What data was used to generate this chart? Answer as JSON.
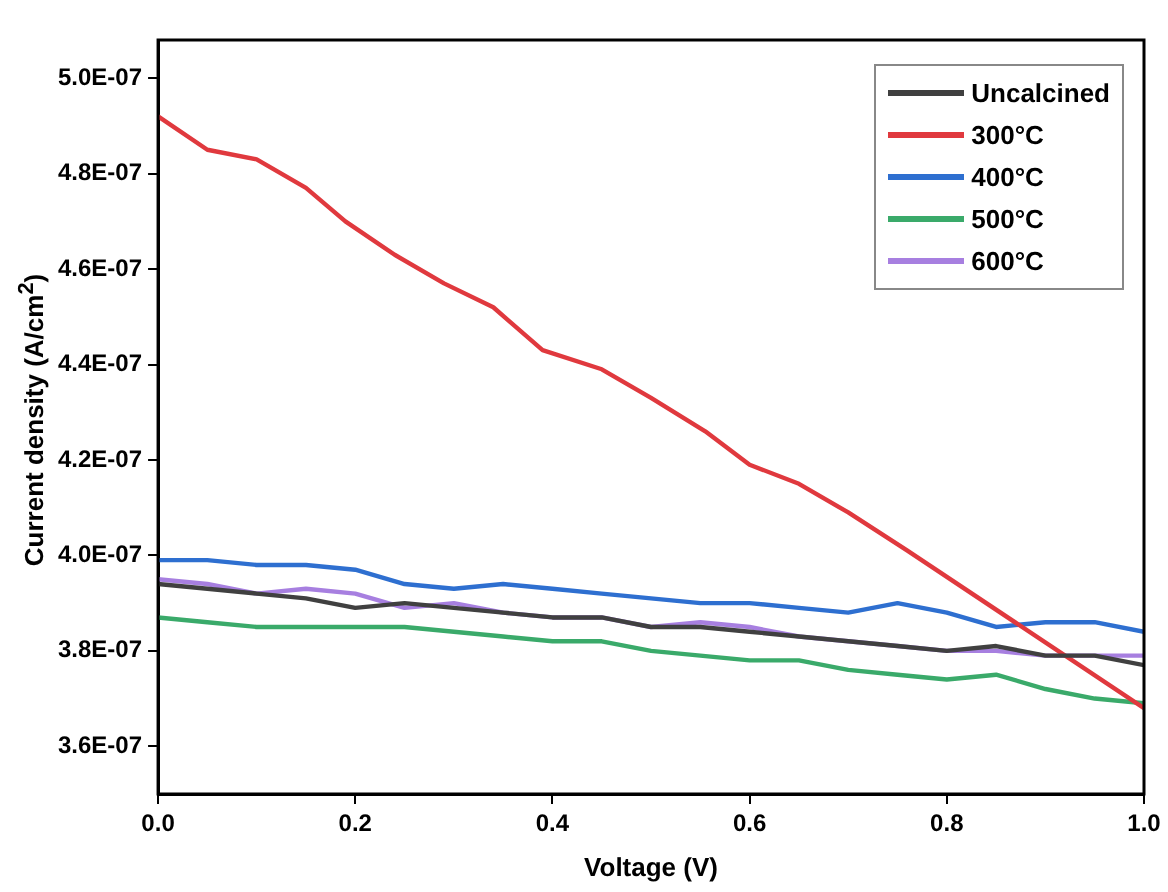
{
  "chart_data": {
    "type": "line",
    "xlabel": "Voltage (V)",
    "ylabel": "Current density (A/cm$^{2}$)",
    "x": [
      0,
      0.05,
      0.1,
      0.15,
      0.2,
      0.25,
      0.3,
      0.35,
      0.4,
      0.45,
      0.5,
      0.55,
      0.6,
      0.65,
      0.7,
      0.75,
      0.8,
      0.85,
      0.9,
      0.95,
      1.0
    ],
    "series": [
      {
        "name": "Uncalcined",
        "color": "#404040",
        "values": [
          3.94e-07,
          3.93e-07,
          3.92e-07,
          3.91e-07,
          3.89e-07,
          3.9e-07,
          3.89e-07,
          3.88e-07,
          3.87e-07,
          3.87e-07,
          3.85e-07,
          3.85e-07,
          3.84e-07,
          3.83e-07,
          3.82e-07,
          3.81e-07,
          3.8e-07,
          3.81e-07,
          3.79e-07,
          3.79e-07,
          3.77e-07
        ]
      },
      {
        "name": "300°C",
        "color": "#e0393e",
        "x": [
          0,
          0.05,
          0.1,
          0.15,
          0.19,
          0.24,
          0.29,
          0.34,
          0.39,
          0.45,
          0.5,
          0.555,
          0.6,
          0.65,
          0.7,
          0.76,
          1.0
        ],
        "values": [
          4.92e-07,
          4.85e-07,
          4.83e-07,
          4.77e-07,
          4.7e-07,
          4.63e-07,
          4.57e-07,
          4.52e-07,
          4.43e-07,
          4.39e-07,
          4.33e-07,
          4.26e-07,
          4.19e-07,
          4.15e-07,
          4.09e-07,
          4.01e-07,
          3.68e-07
        ]
      },
      {
        "name": "400°C",
        "color": "#2e6fd0",
        "values": [
          3.99e-07,
          3.99e-07,
          3.98e-07,
          3.98e-07,
          3.97e-07,
          3.94e-07,
          3.93e-07,
          3.94e-07,
          3.93e-07,
          3.92e-07,
          3.91e-07,
          3.9e-07,
          3.9e-07,
          3.89e-07,
          3.88e-07,
          3.9e-07,
          3.88e-07,
          3.85e-07,
          3.86e-07,
          3.86e-07,
          3.84e-07
        ]
      },
      {
        "name": "500°C",
        "color": "#3aaa6a",
        "values": [
          3.87e-07,
          3.86e-07,
          3.85e-07,
          3.85e-07,
          3.85e-07,
          3.85e-07,
          3.84e-07,
          3.83e-07,
          3.82e-07,
          3.82e-07,
          3.8e-07,
          3.79e-07,
          3.78e-07,
          3.78e-07,
          3.76e-07,
          3.75e-07,
          3.74e-07,
          3.75e-07,
          3.72e-07,
          3.7e-07,
          3.69e-07
        ]
      },
      {
        "name": "600°C",
        "color": "#a77fe0",
        "values": [
          3.95e-07,
          3.94e-07,
          3.92e-07,
          3.93e-07,
          3.92e-07,
          3.89e-07,
          3.9e-07,
          3.88e-07,
          3.87e-07,
          3.87e-07,
          3.85e-07,
          3.86e-07,
          3.85e-07,
          3.83e-07,
          3.82e-07,
          3.81e-07,
          3.8e-07,
          3.8e-07,
          3.79e-07,
          3.79e-07,
          3.79e-07
        ]
      }
    ],
    "xlim": [
      0,
      1.0
    ],
    "xticks": [
      {
        "value": 0,
        "label": "0.0"
      },
      0.2,
      0.4,
      0.6,
      0.8,
      {
        "value": 1.0,
        "label": "1.0"
      }
    ],
    "ylim": [
      3.5e-07,
      5.08e-07
    ],
    "yticks": [
      {
        "value": 3.6e-07,
        "label": "3.6E-07"
      },
      {
        "value": 3.8e-07,
        "label": "3.8E-07"
      },
      {
        "value": 4e-07,
        "label": "4.0E-07"
      },
      {
        "value": 4.2e-07,
        "label": "4.2E-07"
      },
      {
        "value": 4.4e-07,
        "label": "4.4E-07"
      },
      {
        "value": 4.6e-07,
        "label": "4.6E-07"
      },
      {
        "value": 4.8e-07,
        "label": "4.8E-07"
      },
      {
        "value": 5e-07,
        "label": "5.0E-07"
      }
    ],
    "grid": false,
    "legend": "top right",
    "marker": "none",
    "line_style": "solid"
  }
}
